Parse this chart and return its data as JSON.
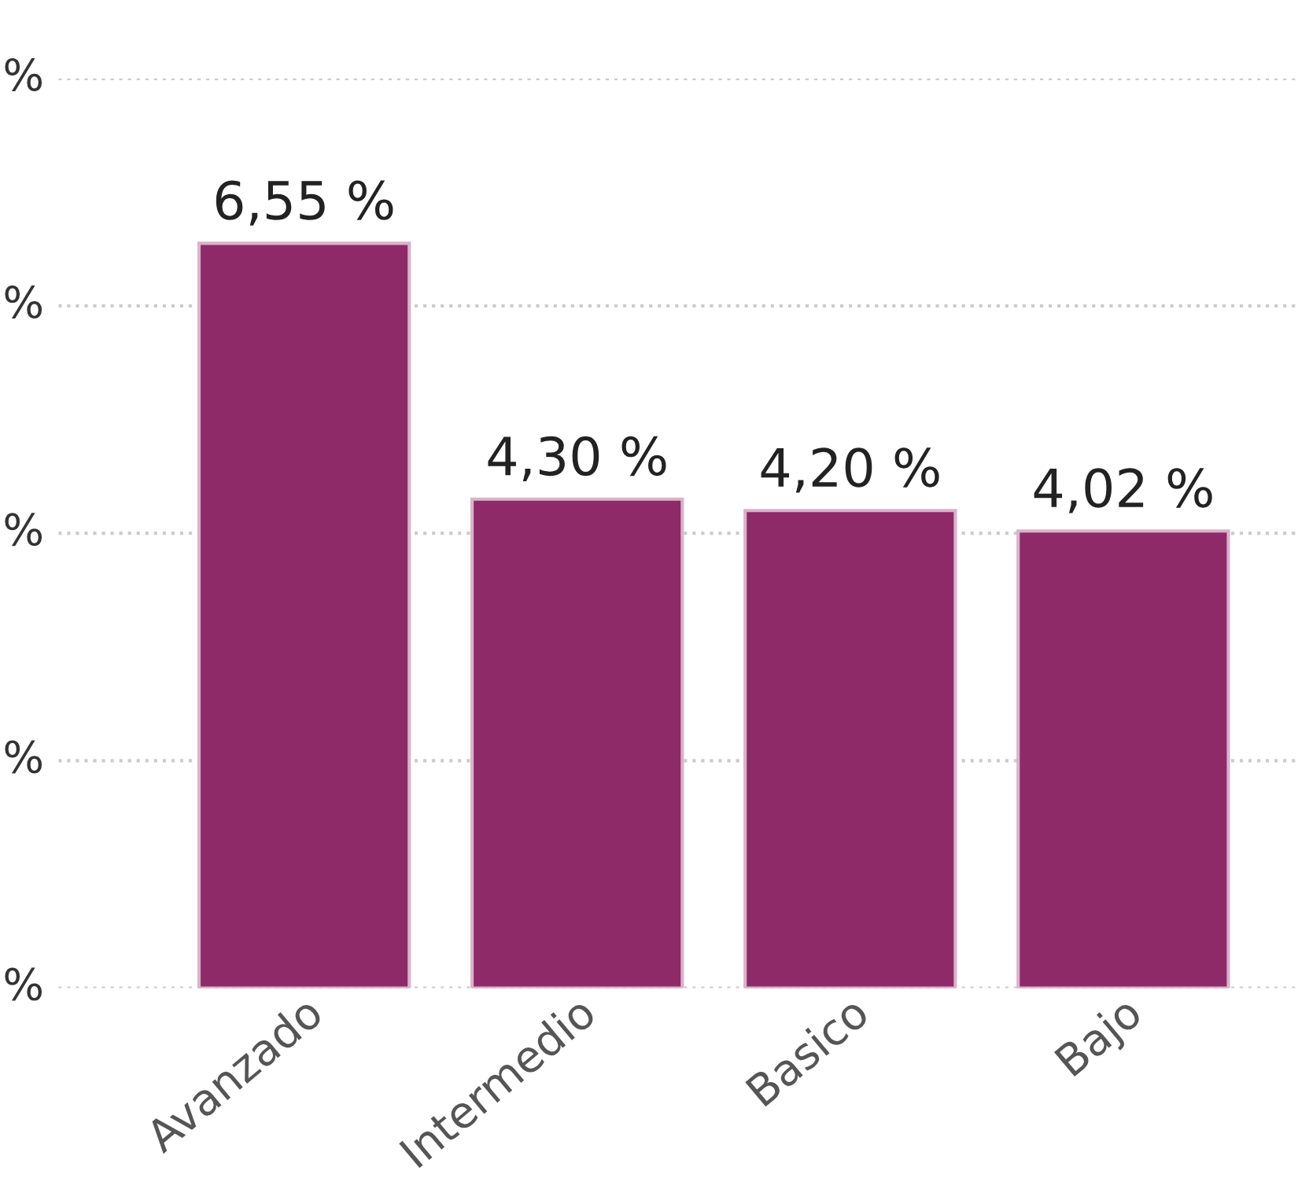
{
  "chart_data": {
    "type": "bar",
    "categories": [
      "Avanzado",
      "Intermedio",
      "Basico",
      "Bajo"
    ],
    "values": [
      6.55,
      4.3,
      4.2,
      4.02
    ],
    "value_labels": [
      "6,55 %",
      "4,30 %",
      "4,20 %",
      "4,02 %"
    ],
    "color": "#8e2a68",
    "ylim": [
      0,
      8
    ],
    "yticks": [
      {
        "value": 0,
        "label": null
      },
      {
        "value": 2,
        "label": null
      },
      {
        "value": 4,
        "label": null
      },
      {
        "value": 6,
        "label": null
      },
      {
        "value": 8,
        "label": null
      }
    ],
    "annotations": [
      "%",
      "%",
      "%",
      "%",
      "%"
    ],
    "grid": "y",
    "legend": false
  }
}
